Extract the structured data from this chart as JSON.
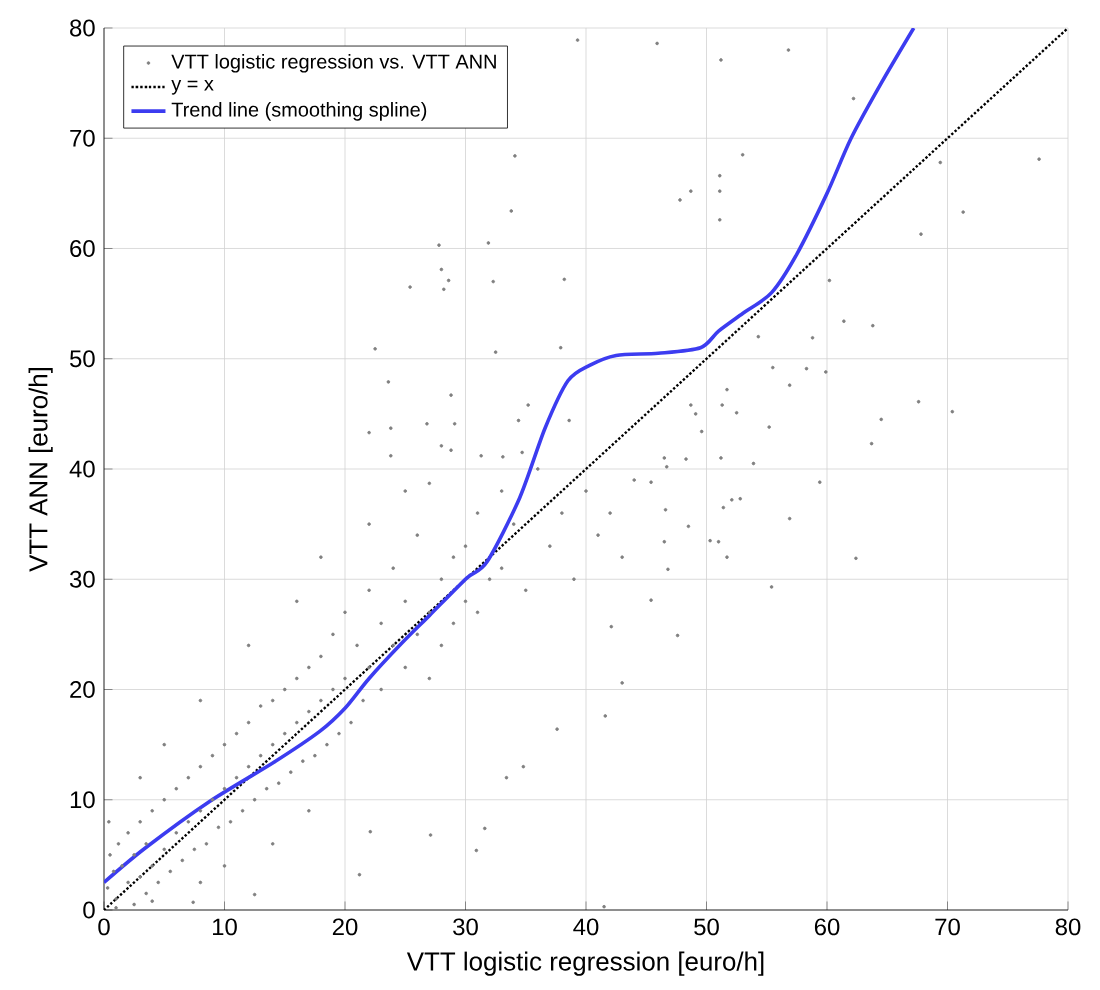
{
  "chart_data": {
    "type": "scatter",
    "xlabel": "VTT logistic regression [euro/h]",
    "ylabel": "VTT ANN [euro/h]",
    "xlim": [
      0,
      80
    ],
    "ylim": [
      0,
      80
    ],
    "xticks": [
      0,
      10,
      20,
      30,
      40,
      50,
      60,
      70,
      80
    ],
    "yticks": [
      0,
      10,
      20,
      30,
      40,
      50,
      60,
      70,
      80
    ],
    "grid": true,
    "legend": "top left",
    "series": [
      {
        "name": "VTT logistic regression vs. VTT ANN",
        "marker": "circle",
        "color": "#808080",
        "x": [
          39.3,
          45.9,
          56.8,
          51.2,
          62.2,
          53.0,
          34.1,
          69.4,
          77.6,
          51.1,
          51.1,
          51.1,
          48.7,
          47.8,
          33.8,
          71.3,
          67.8,
          27.8,
          31.9,
          28.0,
          28.6,
          28.2,
          25.4,
          32.3,
          38.2,
          60.2,
          61.4,
          63.8,
          58.8,
          54.3,
          22.5,
          23.6,
          28.8,
          32.5,
          37.9,
          55.5,
          56.9,
          58.3,
          59.9,
          67.6,
          70.4,
          64.5,
          63.7,
          22.0,
          23.8,
          26.8,
          29.1,
          34.4,
          35.2,
          38.6,
          51.7,
          51.3,
          52.5,
          55.2,
          48.7,
          49.1,
          59.4,
          52.8,
          23.8,
          28.0,
          28.8,
          31.3,
          33.1,
          34.7,
          49.6,
          48.3,
          51.2,
          53.9,
          46.5,
          46.7,
          45.4,
          27.0,
          62.4,
          56.9,
          51.4,
          52.1,
          48.5,
          46.6,
          46.5,
          55.4,
          47.6,
          45.4,
          46.8,
          50.3,
          51.7,
          51.0,
          42.1,
          43.0,
          41.6,
          37.6,
          33.4,
          34.8,
          31.6,
          30.9,
          27.1,
          21.2,
          41.5,
          22.1,
          12.5,
          7.4,
          0.3,
          0.5,
          0.4,
          0.8,
          1,
          1.2,
          1.5,
          2,
          2,
          2.5,
          2.5,
          3,
          3,
          3.5,
          3.5,
          4,
          4,
          4.5,
          5,
          5,
          5.5,
          6,
          6,
          6.5,
          7,
          7,
          7.5,
          8,
          8,
          8.5,
          9,
          9,
          9.5,
          10,
          10,
          10.5,
          11,
          11,
          11.5,
          12,
          12,
          12.5,
          13,
          13,
          13.5,
          14,
          14,
          14.5,
          15,
          15,
          15.5,
          16,
          16,
          16.5,
          17,
          17,
          17.5,
          18,
          18,
          18.5,
          19,
          19,
          19.5,
          20,
          20,
          20.5,
          21,
          21.5,
          22,
          22,
          23,
          23,
          24,
          24,
          25,
          25,
          26,
          26,
          27,
          27,
          28,
          28,
          29,
          29,
          30,
          30,
          31,
          31,
          32,
          33,
          33,
          34,
          35,
          36,
          37,
          38,
          39,
          40,
          41,
          42,
          44,
          43,
          1,
          4,
          8,
          10,
          14,
          17,
          3,
          5,
          8,
          12,
          16,
          18,
          22,
          25
        ],
        "values": [
          78.9,
          78.6,
          78.0,
          77.1,
          73.6,
          68.5,
          68.4,
          67.8,
          68.1,
          66.6,
          65.2,
          62.6,
          65.2,
          64.4,
          63.4,
          63.3,
          61.3,
          60.3,
          60.5,
          58.1,
          57.1,
          56.3,
          56.5,
          57.0,
          57.2,
          57.1,
          53.4,
          53.0,
          51.9,
          52.0,
          50.9,
          47.9,
          46.7,
          50.6,
          51.0,
          49.2,
          47.6,
          49.1,
          48.8,
          46.1,
          45.2,
          44.5,
          42.3,
          43.3,
          43.7,
          44.1,
          44.1,
          44.4,
          45.8,
          44.4,
          47.2,
          45.8,
          45.1,
          43.8,
          45.8,
          45.0,
          38.8,
          37.3,
          41.2,
          42.1,
          41.7,
          41.2,
          41.1,
          41.5,
          43.4,
          40.9,
          41.0,
          40.5,
          41.0,
          40.2,
          38.8,
          38.7,
          31.9,
          35.5,
          36.5,
          37.2,
          34.8,
          36.3,
          33.4,
          29.3,
          24.9,
          28.1,
          30.9,
          33.5,
          32.0,
          33.4,
          25.7,
          20.6,
          17.6,
          16.4,
          12.0,
          13.0,
          7.4,
          5.4,
          6.8,
          3.2,
          0.3,
          7.1,
          1.4,
          0.7,
          2,
          5,
          8,
          3.5,
          1,
          6,
          4,
          2.5,
          7,
          0.5,
          5,
          3,
          8,
          1.5,
          6,
          4,
          9,
          2.5,
          5.5,
          10,
          3.5,
          7,
          11,
          4.5,
          8,
          12,
          5.5,
          9,
          13,
          6,
          10,
          14,
          7.5,
          11,
          15,
          8,
          12,
          16,
          9,
          13,
          17,
          10,
          14,
          18.5,
          11,
          15,
          19,
          11.5,
          16,
          20,
          12.5,
          17,
          21,
          13.5,
          18,
          22,
          14,
          19,
          23,
          15,
          20,
          25,
          16,
          21,
          27,
          17,
          24,
          19,
          22,
          29,
          20,
          26,
          24,
          31,
          22,
          28,
          25,
          34,
          27,
          21,
          30,
          24,
          32,
          26,
          33,
          28,
          36,
          27,
          30,
          38,
          31,
          35,
          29,
          40,
          33,
          36,
          30,
          38,
          34,
          36,
          39,
          32,
          0.2,
          0.8,
          2.5,
          4,
          6,
          9,
          12,
          15,
          19,
          24,
          28,
          32,
          35,
          38
        ]
      },
      {
        "name": "y = x",
        "type": "line",
        "marker": "none",
        "line_style": "dotted",
        "color": "#000000",
        "x": [
          0,
          80
        ],
        "values": [
          0,
          80
        ]
      },
      {
        "name": "Trend line (smoothing spline)",
        "type": "line",
        "marker": "none",
        "line_style": "solid",
        "color": "#3c3cf0",
        "x": [
          0,
          3.4,
          8.7,
          14.1,
          17.9,
          20,
          22,
          24.8,
          27,
          30.1,
          31.8,
          34.5,
          36.6,
          38.5,
          40.3,
          42.5,
          46,
          49.5,
          51,
          53,
          55.4,
          57.5,
          60,
          62,
          64.5,
          67.2
        ],
        "values": [
          2.5,
          5.6,
          9.8,
          13.4,
          16.2,
          18.3,
          21,
          24.3,
          26.7,
          30.1,
          31.6,
          37.4,
          43.7,
          48,
          49.4,
          50.3,
          50.5,
          51,
          52.5,
          54.1,
          56,
          59.5,
          65,
          70,
          75,
          80
        ]
      }
    ]
  }
}
